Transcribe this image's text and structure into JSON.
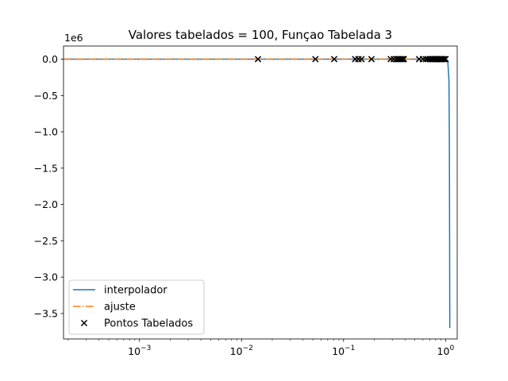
{
  "chart_data": {
    "type": "line",
    "title": "Valores tabelados = 100, Funçao Tabelada 3",
    "xscale": "log",
    "xlim": [
      0.00018,
      1.3
    ],
    "ylim": [
      -3850000,
      180000
    ],
    "y_offset_label": "1e6",
    "x_ticks": [
      {
        "value": 0.001,
        "base": "10",
        "exp": "−3"
      },
      {
        "value": 0.01,
        "base": "10",
        "exp": "−2"
      },
      {
        "value": 0.1,
        "base": "10",
        "exp": "−1"
      },
      {
        "value": 1,
        "base": "10",
        "exp": "0"
      }
    ],
    "y_ticks": [
      {
        "value": 0,
        "label": "0.0"
      },
      {
        "value": -500000,
        "label": "−0.5"
      },
      {
        "value": -1000000,
        "label": "−1.0"
      },
      {
        "value": -1500000,
        "label": "−1.5"
      },
      {
        "value": -2000000,
        "label": "−2.0"
      },
      {
        "value": -2500000,
        "label": "−2.5"
      },
      {
        "value": -3000000,
        "label": "−3.0"
      },
      {
        "value": -3500000,
        "label": "−3.5"
      }
    ],
    "legend_position": "lower left",
    "series": [
      {
        "name": "interpolador",
        "style": "solid",
        "color": "#1f77b4",
        "x": [
          0.00018,
          0.01,
          0.1,
          0.5,
          0.9,
          1.0,
          1.05,
          1.08,
          1.09,
          1.095,
          1.1
        ],
        "y": [
          0,
          0,
          0,
          0,
          0,
          0,
          -20000,
          -300000,
          -1200000,
          -2400000,
          -3700000
        ]
      },
      {
        "name": "ajuste",
        "style": "dashdot",
        "color": "#ff7f0e",
        "x": [
          0.00018,
          0.01,
          0.1,
          0.5,
          1.0
        ],
        "y": [
          0,
          0,
          0,
          0,
          0
        ]
      },
      {
        "name": "Pontos Tabelados",
        "style": "scatter",
        "marker": "x",
        "color": "#000000",
        "x": [
          0.0145,
          0.053,
          0.081,
          0.13,
          0.14,
          0.15,
          0.188,
          0.29,
          0.31,
          0.33,
          0.34,
          0.35,
          0.36,
          0.37,
          0.38,
          0.39,
          0.55,
          0.6,
          0.64,
          0.67,
          0.7,
          0.72,
          0.74,
          0.76,
          0.78,
          0.8,
          0.82,
          0.84,
          0.86,
          0.88,
          0.9,
          0.92,
          0.94,
          0.97,
          1.0
        ],
        "y": [
          0,
          0,
          0,
          0,
          0,
          0,
          0,
          0,
          0,
          0,
          0,
          0,
          0,
          0,
          0,
          0,
          0,
          0,
          0,
          0,
          0,
          0,
          0,
          0,
          0,
          0,
          0,
          0,
          0,
          0,
          0,
          0,
          0,
          0,
          0
        ]
      }
    ]
  }
}
